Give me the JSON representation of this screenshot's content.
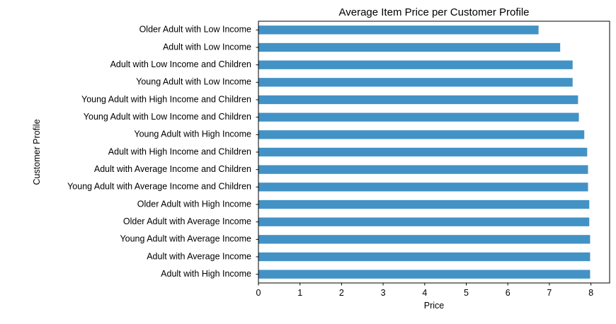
{
  "chart_data": {
    "type": "bar",
    "orientation": "horizontal",
    "title": "Average Item Price per Customer Profile",
    "xlabel": "Price",
    "ylabel": "Customer Profile",
    "xlim": [
      0,
      8.45
    ],
    "xticks": [
      0,
      1,
      2,
      3,
      4,
      5,
      6,
      7,
      8
    ],
    "grid": false,
    "legend": "none",
    "bar_color": "#4292c6",
    "categories": [
      "Older Adult with Low Income",
      "Adult with Low Income",
      "Adult with Low Income and Children",
      "Young Adult with Low Income",
      "Young Adult with High Income and Children",
      "Young Adult with Low Income and Children",
      "Young Adult with High Income",
      "Adult with High Income and Children",
      "Adult with Average Income and Children",
      "Young Adult with Average Income and Children",
      "Older Adult with High Income",
      "Older Adult with Average Income",
      "Young Adult with Average Income",
      "Adult with Average Income",
      "Adult with High Income"
    ],
    "values": [
      6.74,
      7.26,
      7.56,
      7.56,
      7.69,
      7.71,
      7.84,
      7.91,
      7.93,
      7.93,
      7.96,
      7.96,
      7.98,
      7.98,
      7.98
    ]
  }
}
